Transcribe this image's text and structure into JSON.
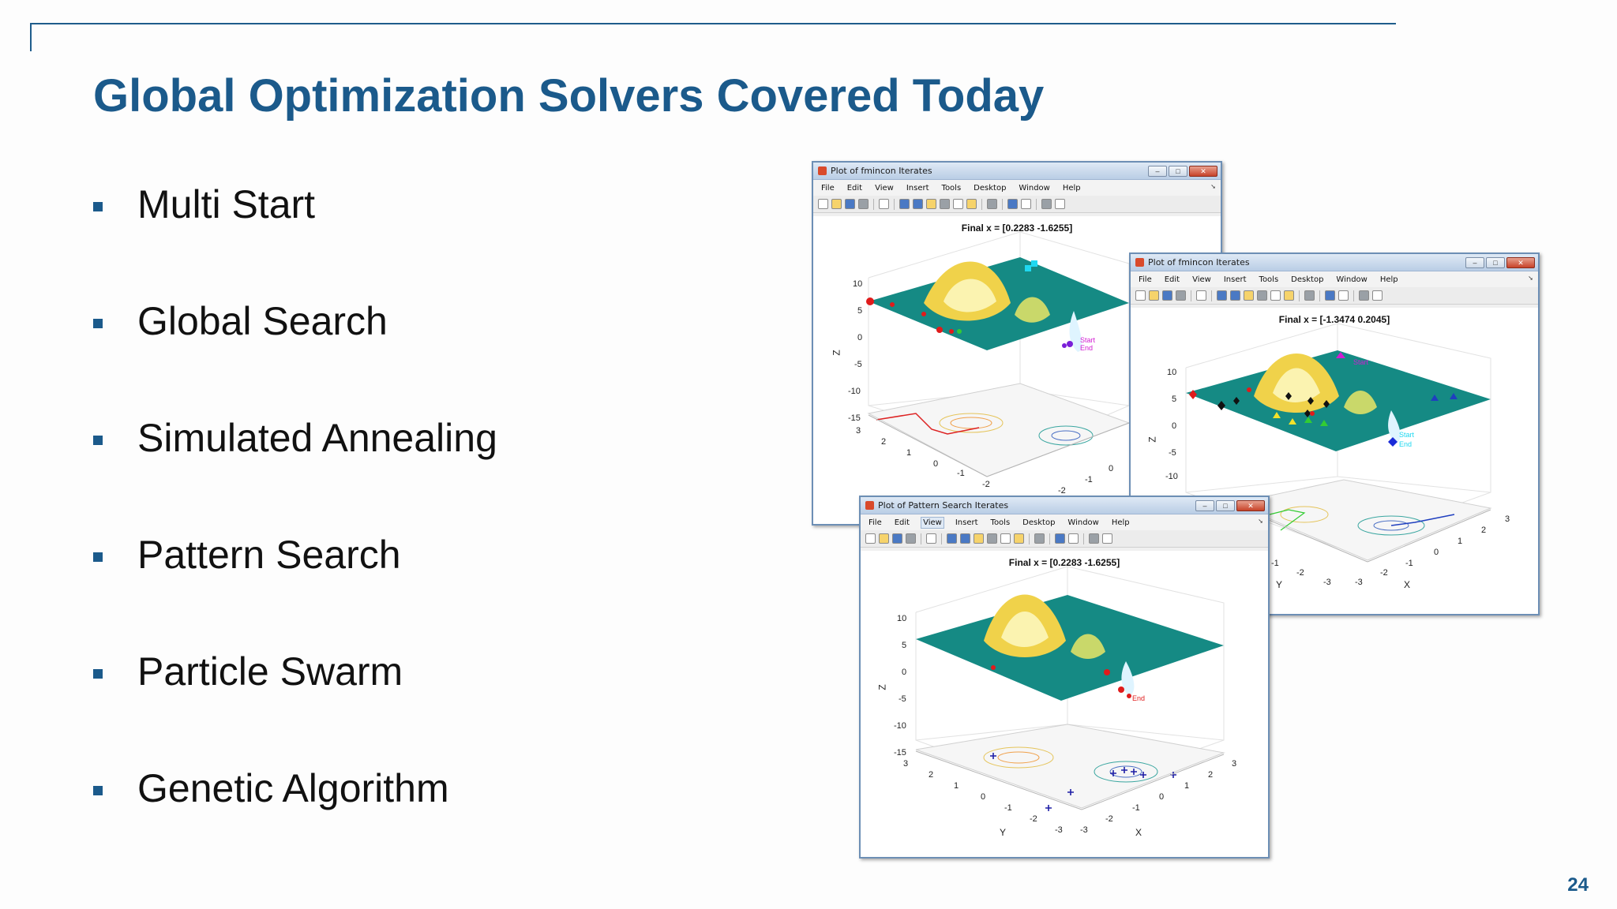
{
  "slide": {
    "title": "Global Optimization Solvers Covered Today",
    "page_number": "24",
    "accent_color": "#1b5a8b"
  },
  "bullets": [
    {
      "label": "Multi Start"
    },
    {
      "label": "Global Search"
    },
    {
      "label": "Simulated Annealing"
    },
    {
      "label": "Pattern Search"
    },
    {
      "label": "Particle Swarm"
    },
    {
      "label": "Genetic Algorithm"
    }
  ],
  "figures": [
    {
      "window_title": "Plot of fmincon Iterates",
      "menu": [
        "File",
        "Edit",
        "View",
        "Insert",
        "Tools",
        "Desktop",
        "Window",
        "Help"
      ],
      "plot_title": "Final x = [0.2283 -1.6255]",
      "z_label": "Z",
      "z_ticks": [
        "10",
        "5",
        "0",
        "-5",
        "-10",
        "-15"
      ],
      "y_ticks": [
        "3",
        "2",
        "1",
        "0",
        "-1",
        "-2"
      ],
      "x_ticks": [
        "0",
        "-1",
        "-2"
      ]
    },
    {
      "window_title": "Plot of fmincon Iterates",
      "menu": [
        "File",
        "Edit",
        "View",
        "Insert",
        "Tools",
        "Desktop",
        "Window",
        "Help"
      ],
      "plot_title": "Final x = [-1.3474 0.2045]",
      "z_label": "Z",
      "z_ticks": [
        "10",
        "5",
        "0",
        "-5",
        "-10"
      ],
      "y_ticks": [
        "-1",
        "-2",
        "-3"
      ],
      "x_ticks": [
        "3",
        "2",
        "1",
        "0",
        "-1",
        "-2",
        "-3"
      ],
      "y_label": "Y",
      "x_label": "X"
    },
    {
      "window_title": "Plot of Pattern Search Iterates",
      "menu": [
        "File",
        "Edit",
        "View",
        "Insert",
        "Tools",
        "Desktop",
        "Window",
        "Help"
      ],
      "plot_title": "Final x = [0.2283 -1.6255]",
      "z_label": "Z",
      "z_ticks": [
        "10",
        "5",
        "0",
        "-5",
        "-10",
        "-15"
      ],
      "y_ticks": [
        "3",
        "2",
        "1",
        "0",
        "-1",
        "-2",
        "-3"
      ],
      "x_ticks": [
        "3",
        "2",
        "1",
        "0",
        "-1",
        "-2",
        "-3"
      ],
      "y_label": "Y",
      "x_label": "X",
      "end_label": "End"
    }
  ]
}
